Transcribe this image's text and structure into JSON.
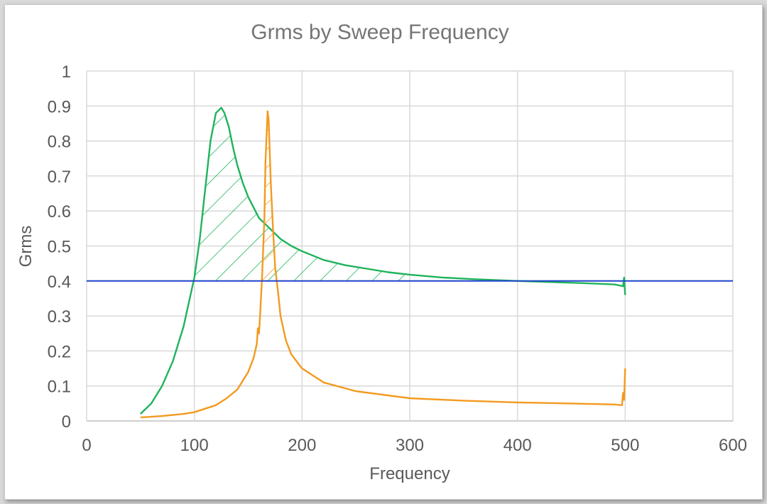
{
  "chart_data": {
    "type": "line",
    "title": "Grms by Sweep Frequency",
    "xlabel": "Frequency",
    "ylabel": "Grms",
    "xlim": [
      0,
      600
    ],
    "ylim": [
      0,
      1
    ],
    "x_ticks": [
      "0",
      "100",
      "200",
      "300",
      "400",
      "500",
      "600"
    ],
    "y_ticks": [
      "0",
      "0.1",
      "0.2",
      "0.3",
      "0.4",
      "0.5",
      "0.6",
      "0.7",
      "0.8",
      "0.9",
      "1"
    ],
    "grid": true,
    "legend": "none",
    "series": [
      {
        "color": "#1fb35c",
        "x": [
          50,
          60,
          70,
          80,
          90,
          100,
          105,
          110,
          115,
          120,
          125,
          128,
          132,
          136,
          140,
          145,
          150,
          155,
          160,
          170,
          180,
          190,
          200,
          220,
          240,
          260,
          280,
          300,
          330,
          360,
          400,
          430,
          460,
          490,
          498,
          499,
          500
        ],
        "y": [
          0.02,
          0.05,
          0.1,
          0.17,
          0.27,
          0.41,
          0.52,
          0.66,
          0.8,
          0.88,
          0.895,
          0.88,
          0.84,
          0.78,
          0.73,
          0.68,
          0.64,
          0.61,
          0.58,
          0.55,
          0.52,
          0.5,
          0.485,
          0.46,
          0.445,
          0.435,
          0.425,
          0.418,
          0.41,
          0.405,
          0.4,
          0.397,
          0.394,
          0.39,
          0.385,
          0.41,
          0.36
        ]
      },
      {
        "color": "#f39a1f",
        "x": [
          50,
          70,
          90,
          100,
          110,
          120,
          130,
          140,
          150,
          155,
          158,
          159,
          160,
          161,
          163,
          165,
          166,
          168,
          169,
          170,
          171,
          173,
          175,
          178,
          180,
          185,
          190,
          200,
          220,
          250,
          300,
          350,
          400,
          450,
          490,
          497,
          498,
          499,
          500
        ],
        "y": [
          0.01,
          0.014,
          0.02,
          0.025,
          0.035,
          0.045,
          0.065,
          0.09,
          0.14,
          0.18,
          0.22,
          0.265,
          0.25,
          0.3,
          0.42,
          0.58,
          0.74,
          0.885,
          0.86,
          0.77,
          0.68,
          0.55,
          0.44,
          0.36,
          0.3,
          0.23,
          0.19,
          0.15,
          0.11,
          0.085,
          0.065,
          0.058,
          0.053,
          0.05,
          0.047,
          0.045,
          0.08,
          0.06,
          0.15
        ]
      },
      {
        "color": "#1f44cc",
        "x": [
          0,
          600
        ],
        "y": [
          0.4,
          0.4
        ]
      }
    ],
    "annotations": [
      {
        "type": "hatched-area",
        "color": "#1fb35c",
        "description_series": 0,
        "threshold": 0.4,
        "x_range": [
          97,
          310
        ]
      },
      {
        "type": "hatched-area",
        "color": "#f39a1f",
        "description_series": 1,
        "threshold": 0.4,
        "x_range": [
          162,
          180
        ]
      }
    ]
  }
}
